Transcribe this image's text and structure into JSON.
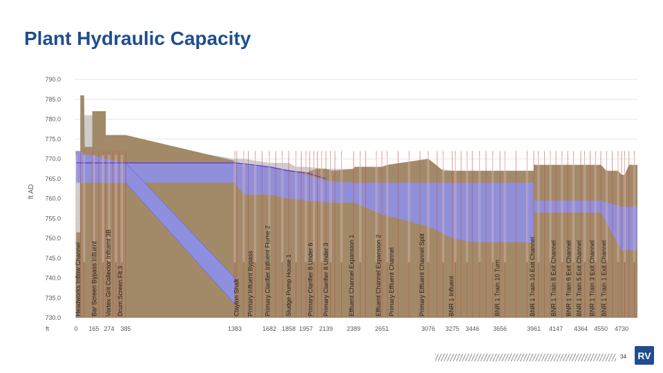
{
  "title": "Plant Hydraulic Capacity",
  "page_number": "34",
  "chart_data": {
    "type": "area",
    "ylabel": "ft AD",
    "xlabel": "ft",
    "ylim": [
      730,
      790
    ],
    "yticks": [
      "790.0",
      "785.0",
      "780.0",
      "775.0",
      "770.0",
      "765.0",
      "760.0",
      "755.0",
      "750.0",
      "745.0",
      "740.0",
      "735.0",
      "730.0"
    ],
    "xticks": [
      "0",
      "165",
      "274",
      "385",
      "1383",
      "1682",
      "1858",
      "1957",
      "2139",
      "2389",
      "2651",
      "3076",
      "3275",
      "3446",
      "3656",
      "3961",
      "4147",
      "4364",
      "4550",
      "4730"
    ],
    "xlim": [
      0,
      4880
    ],
    "grid": true,
    "structure_labels": [
      {
        "text": "Headworks Inflow Channel",
        "x": 0
      },
      {
        "text": "Bar Screen Bypass Influent",
        "x": 150
      },
      {
        "text": "Vortex Grit Collector Influent 3B",
        "x": 255
      },
      {
        "text": "Drum Screen Flt 3",
        "x": 335
      },
      {
        "text": "Clayton Shaft",
        "x": 1380
      },
      {
        "text": "Primary Influent Bypass",
        "x": 1500
      },
      {
        "text": "Primary Clarifier Influent Flume 2",
        "x": 1650
      },
      {
        "text": "Sludge Pump House 1",
        "x": 1840
      },
      {
        "text": "Primary Clarifier 8 Under 6",
        "x": 1980
      },
      {
        "text": "Primary Clarifier 8 Under 3",
        "x": 2120
      },
      {
        "text": "Effluent Channel Expansion 1",
        "x": 2350
      },
      {
        "text": "Effluent Channel Expansion 2",
        "x": 2600
      },
      {
        "text": "Primary Effluent Channel",
        "x": 2720
      },
      {
        "text": "Primary Effluent Channel Split",
        "x": 3000
      },
      {
        "text": "BNR 1 Influent",
        "x": 3250
      },
      {
        "text": "BNR 1 Train 10 Turn",
        "x": 3620
      },
      {
        "text": "BNR 1 Train 10 Exit Channel",
        "x": 3930
      },
      {
        "text": "BNR 1 Train 8 Exit Channel",
        "x": 4110
      },
      {
        "text": "BNR 1 Train 6 Exit Channel",
        "x": 4240
      },
      {
        "text": "BNR 1 Train 5 Exit Channel",
        "x": 4330
      },
      {
        "text": "BNR 1 Train 3 Exit Channel",
        "x": 4450
      },
      {
        "text": "BNR 1 Train 1 Exit Channel",
        "x": 4560
      }
    ],
    "series": [
      {
        "kind": "ground",
        "points": [
          [
            0,
            751.5
          ],
          [
            40,
            751.5
          ],
          [
            40,
            786
          ],
          [
            75,
            786
          ],
          [
            80,
            773
          ],
          [
            150,
            773
          ],
          [
            150,
            782
          ],
          [
            250,
            782
          ],
          [
            250,
            776
          ],
          [
            385,
            776
          ],
          [
            1383,
            769.5
          ],
          [
            1383,
            768
          ],
          [
            1680,
            768
          ],
          [
            1960,
            766.5
          ],
          [
            2000,
            767
          ],
          [
            2050,
            767.5
          ],
          [
            2140,
            767.5
          ],
          [
            2200,
            767
          ],
          [
            2389,
            767.5
          ],
          [
            2400,
            768
          ],
          [
            2651,
            768
          ],
          [
            2700,
            768.5
          ],
          [
            3076,
            770
          ],
          [
            3100,
            769.5
          ],
          [
            3200,
            767
          ],
          [
            3300,
            767
          ],
          [
            3446,
            767
          ],
          [
            3656,
            767
          ],
          [
            3961,
            767
          ],
          [
            3961,
            768.5
          ],
          [
            4147,
            768.5
          ],
          [
            4364,
            768.5
          ],
          [
            4550,
            768.5
          ],
          [
            4600,
            767
          ],
          [
            4700,
            767
          ],
          [
            4730,
            766
          ],
          [
            4760,
            766
          ],
          [
            4800,
            768.5
          ],
          [
            4880,
            768.5
          ]
        ]
      },
      {
        "kind": "capacity",
        "points": [
          [
            0,
            764
          ],
          [
            40,
            764
          ],
          [
            40,
            781
          ],
          [
            150,
            781
          ],
          [
            150,
            776
          ],
          [
            1383,
            770
          ],
          [
            1460,
            770
          ],
          [
            1682,
            769
          ],
          [
            1858,
            769
          ],
          [
            1900,
            768
          ],
          [
            1957,
            768
          ],
          [
            2139,
            767.5
          ],
          [
            2389,
            767.5
          ],
          [
            2651,
            767
          ],
          [
            3076,
            768
          ],
          [
            3275,
            767
          ],
          [
            3446,
            767
          ],
          [
            3656,
            767
          ],
          [
            3961,
            767
          ],
          [
            4147,
            767
          ],
          [
            4364,
            767
          ],
          [
            4550,
            767
          ],
          [
            4730,
            766
          ],
          [
            4880,
            766
          ]
        ]
      },
      {
        "kind": "hgl_top",
        "points": [
          [
            0,
            772
          ],
          [
            40,
            772
          ],
          [
            80,
            771
          ],
          [
            150,
            771
          ],
          [
            250,
            770
          ],
          [
            385,
            769
          ],
          [
            1383,
            769
          ],
          [
            1460,
            768.5
          ],
          [
            1682,
            768
          ],
          [
            1858,
            767
          ],
          [
            1957,
            766
          ],
          [
            2139,
            764.5
          ],
          [
            2389,
            764
          ],
          [
            2651,
            764
          ],
          [
            3076,
            764
          ],
          [
            3275,
            764
          ],
          [
            3446,
            764
          ],
          [
            3656,
            764
          ],
          [
            3961,
            764
          ],
          [
            3961,
            759.5
          ],
          [
            4147,
            759.5
          ],
          [
            4364,
            759.5
          ],
          [
            4550,
            759.5
          ],
          [
            4730,
            758
          ],
          [
            4880,
            758
          ]
        ]
      },
      {
        "kind": "hgl_bottom",
        "points": [
          [
            0,
            764
          ],
          [
            40,
            764
          ],
          [
            150,
            764
          ],
          [
            250,
            764
          ],
          [
            385,
            764
          ],
          [
            1383,
            764
          ],
          [
            1460,
            761
          ],
          [
            1682,
            761
          ],
          [
            1858,
            760
          ],
          [
            1957,
            759.5
          ],
          [
            2139,
            759
          ],
          [
            2389,
            759
          ],
          [
            2651,
            756
          ],
          [
            3076,
            753
          ],
          [
            3275,
            750
          ],
          [
            3446,
            749
          ],
          [
            3656,
            749
          ],
          [
            3961,
            749
          ],
          [
            3961,
            756.5
          ],
          [
            4147,
            756.5
          ],
          [
            4364,
            756.5
          ],
          [
            4550,
            756.5
          ],
          [
            4730,
            747
          ],
          [
            4880,
            747
          ]
        ]
      },
      {
        "kind": "diagonal_pipe",
        "points": [
          [
            385,
            764
          ],
          [
            1383,
            733.5
          ],
          [
            1383,
            740
          ],
          [
            385,
            769
          ]
        ]
      },
      {
        "kind": "hgl_line",
        "points": [
          [
            0,
            769
          ],
          [
            150,
            769
          ],
          [
            385,
            769
          ],
          [
            1383,
            769
          ],
          [
            1682,
            768
          ],
          [
            1858,
            767
          ],
          [
            1957,
            766.5
          ],
          [
            2139,
            765
          ]
        ]
      }
    ],
    "structures_x": [
      0,
      40,
      75,
      150,
      165,
      200,
      230,
      250,
      274,
      300,
      320,
      340,
      360,
      385,
      1383,
      1400,
      1460,
      1500,
      1560,
      1620,
      1682,
      1740,
      1800,
      1858,
      1900,
      1930,
      1957,
      1990,
      2030,
      2060,
      2100,
      2139,
      2180,
      2220,
      2280,
      2389,
      2450,
      2500,
      2600,
      2651,
      2700,
      2800,
      2900,
      3000,
      3076,
      3150,
      3200,
      3275,
      3300,
      3350,
      3400,
      3446,
      3500,
      3550,
      3600,
      3656,
      3700,
      3800,
      3900,
      3961,
      4000,
      4050,
      4100,
      4147,
      4200,
      4250,
      4300,
      4364,
      4400,
      4450,
      4500,
      4550,
      4600,
      4650,
      4700,
      4730,
      4760,
      4800,
      4850
    ],
    "colors": {
      "ground": "#a28a68",
      "capacity": "#c8c8c8",
      "hgl": "#8f8fe0",
      "hgl_line": "#6a3fd1",
      "structure": "#c0504d",
      "grid": "#e6e6e6",
      "axis_text": "#595959",
      "title": "#1f4e8c"
    }
  }
}
